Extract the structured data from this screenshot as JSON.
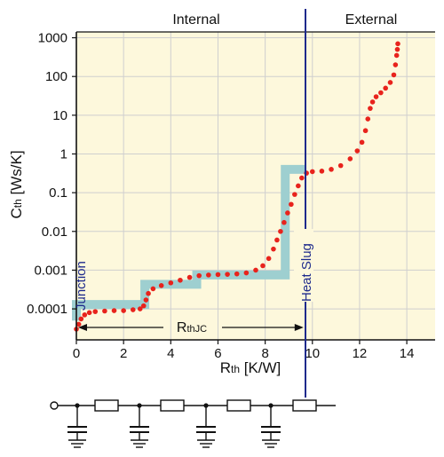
{
  "chart_data": {
    "type": "line",
    "xlabel": "Rth [K/W]",
    "ylabel": "Cth [Ws/K]",
    "xlabel_main": "R",
    "xlabel_sub": "th",
    "xlabel_unit": " [K/W]",
    "ylabel_main": "C",
    "ylabel_sub": "th",
    "ylabel_unit": " [Ws/K]",
    "xlim": [
      0,
      15.2
    ],
    "ylim_log10": [
      -4.8,
      3.15
    ],
    "yscale": "log",
    "grid": true,
    "x_ticks": [
      0,
      2,
      4,
      6,
      8,
      10,
      12,
      14
    ],
    "x_tick_labels": [
      "0",
      "2",
      "4",
      "6",
      "8",
      "10",
      "12",
      "14"
    ],
    "y_ticks": [
      0.0001,
      0.001,
      0.01,
      0.1,
      1,
      10,
      100,
      1000
    ],
    "y_tick_labels": [
      "0.0001",
      "0.001",
      "0.01",
      "0.1",
      "1",
      "10",
      "100",
      "1000"
    ],
    "regions": {
      "internal": "Internal",
      "external": "External"
    },
    "annotations": {
      "junction": "Junction",
      "heat_slug": "Heat Slug",
      "rthjc_main": "R",
      "rthjc_sub": "thJC",
      "rthjc_from": 0,
      "rthjc_to": 9.7,
      "heat_slug_x": 9.7
    },
    "series": [
      {
        "kind": "step-model",
        "color": "#9ecfd0",
        "points": [
          [
            0,
            5e-05
          ],
          [
            0,
            0.00013
          ],
          [
            2.9,
            0.00013
          ],
          [
            2.9,
            0.00043
          ],
          [
            5.1,
            0.00043
          ],
          [
            5.1,
            0.00075
          ],
          [
            8.85,
            0.00075
          ],
          [
            8.85,
            0.4
          ],
          [
            9.7,
            0.4
          ]
        ]
      },
      {
        "kind": "structure-function",
        "color": "#e8231c",
        "points": [
          [
            0,
            3e-05
          ],
          [
            0.1,
            4e-05
          ],
          [
            0.2,
            5.5e-05
          ],
          [
            0.35,
            7e-05
          ],
          [
            0.55,
            8e-05
          ],
          [
            0.8,
            8.5e-05
          ],
          [
            1.2,
            8.8e-05
          ],
          [
            1.6,
            9e-05
          ],
          [
            2.0,
            9e-05
          ],
          [
            2.4,
            9.5e-05
          ],
          [
            2.7,
            0.0001
          ],
          [
            2.85,
            0.00012
          ],
          [
            2.95,
            0.00017
          ],
          [
            3.05,
            0.00025
          ],
          [
            3.25,
            0.00033
          ],
          [
            3.6,
            0.0004
          ],
          [
            4.0,
            0.00047
          ],
          [
            4.4,
            0.00055
          ],
          [
            4.8,
            0.00065
          ],
          [
            5.2,
            0.00072
          ],
          [
            5.6,
            0.00075
          ],
          [
            6.0,
            0.00077
          ],
          [
            6.4,
            0.00078
          ],
          [
            6.8,
            0.0008
          ],
          [
            7.2,
            0.00085
          ],
          [
            7.6,
            0.001
          ],
          [
            7.9,
            0.0013
          ],
          [
            8.15,
            0.002
          ],
          [
            8.35,
            0.0035
          ],
          [
            8.5,
            0.006
          ],
          [
            8.65,
            0.01
          ],
          [
            8.8,
            0.017
          ],
          [
            8.95,
            0.03
          ],
          [
            9.1,
            0.05
          ],
          [
            9.25,
            0.09
          ],
          [
            9.4,
            0.15
          ],
          [
            9.55,
            0.24
          ],
          [
            9.75,
            0.32
          ],
          [
            10.0,
            0.35
          ],
          [
            10.4,
            0.36
          ],
          [
            10.8,
            0.4
          ],
          [
            11.2,
            0.5
          ],
          [
            11.6,
            0.75
          ],
          [
            11.9,
            1.2
          ],
          [
            12.1,
            2.0
          ],
          [
            12.25,
            4.0
          ],
          [
            12.35,
            8.0
          ],
          [
            12.45,
            15.0
          ],
          [
            12.55,
            22.0
          ],
          [
            12.7,
            30.0
          ],
          [
            12.9,
            38.0
          ],
          [
            13.1,
            50.0
          ],
          [
            13.3,
            70.0
          ],
          [
            13.45,
            110.0
          ],
          [
            13.52,
            200.0
          ],
          [
            13.57,
            350.0
          ],
          [
            13.6,
            500.0
          ],
          [
            13.62,
            700.0
          ]
        ]
      }
    ]
  },
  "circuit": {
    "description_label": "thermal ladder network",
    "stages": 4
  },
  "colors": {
    "plot_background": "#fdf8dc",
    "grid": "#cfcfcf",
    "heat_slug_line": "#1e2a8c",
    "text": "#111111"
  }
}
